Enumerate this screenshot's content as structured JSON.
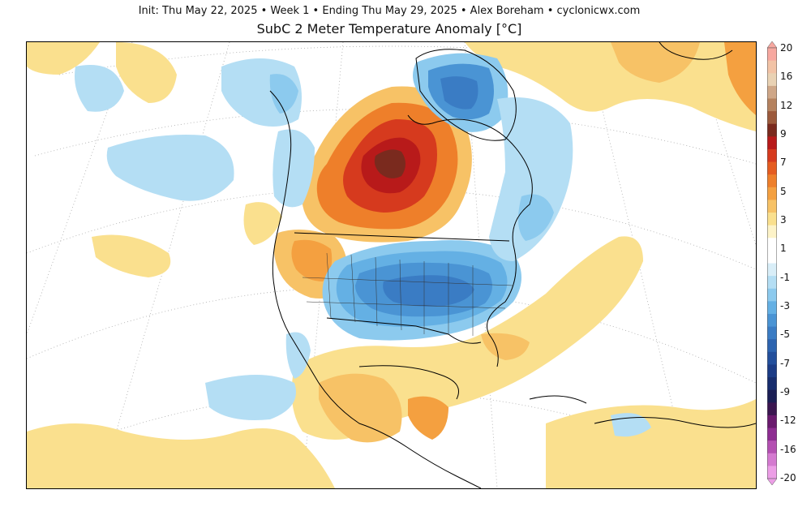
{
  "header": {
    "info": "Init: Thu May 22, 2025  •  Week 1  •  Ending Thu May 29, 2025  •  Alex Boreham  •  cyclonicwx.com",
    "title": "SubC 2 Meter Temperature Anomaly [°C]"
  },
  "colorbar": {
    "labels": [
      "20",
      "16",
      "12",
      "9",
      "7",
      "5",
      "3",
      "1",
      "-1",
      "-3",
      "-5",
      "-7",
      "-9",
      "-12",
      "-16",
      "-20"
    ],
    "colors": [
      "#f7a8a0",
      "#f2c3a6",
      "#e9d2b4",
      "#cfa788",
      "#b5825f",
      "#9c5a3c",
      "#7a2a1e",
      "#b81a1a",
      "#d63a1e",
      "#e55c20",
      "#ee7f2a",
      "#f4a040",
      "#f7c266",
      "#fae08e",
      "#fdf3c8",
      "#ffffff",
      "#ffffff",
      "#d9eef8",
      "#b4def4",
      "#8ccaee",
      "#64b0e4",
      "#4a94d4",
      "#3a7cc4",
      "#2d64b0",
      "#234f9c",
      "#1c3c86",
      "#172d6e",
      "#1b1f55",
      "#3b1650",
      "#6a1a6e",
      "#8e2d92",
      "#b450b2",
      "#d47ad0",
      "#ec9ee6"
    ]
  }
}
